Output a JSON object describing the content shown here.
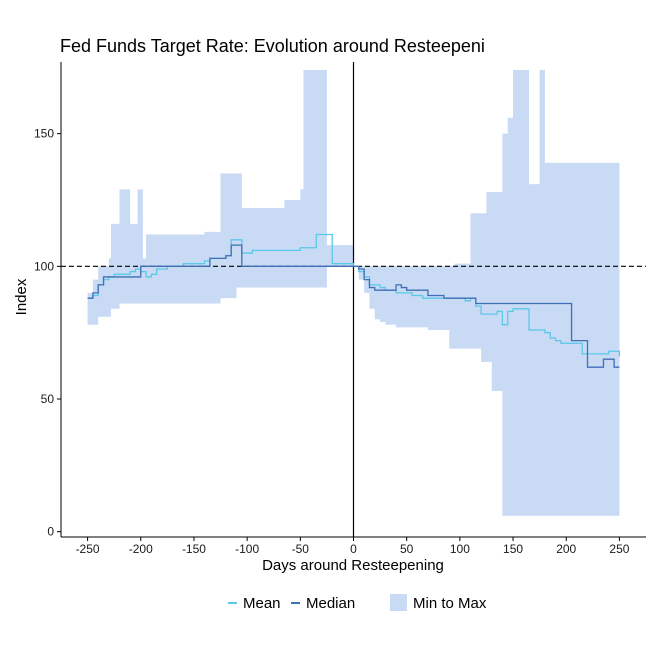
{
  "chart_data": {
    "type": "line",
    "title": "Fed Funds Target Rate: Evolution around Resteepeni",
    "xlabel": "Days around Resteepening",
    "ylabel": "Index",
    "xlim": [
      -275,
      275
    ],
    "ylim": [
      -2,
      177
    ],
    "x_ticks": [
      -250,
      -200,
      -150,
      -100,
      -50,
      0,
      50,
      100,
      150,
      200,
      250
    ],
    "x_tick_labels": [
      "-250",
      "-200",
      "-150",
      "-100",
      "-50",
      "0",
      "50",
      "100",
      "150",
      "200",
      "250"
    ],
    "y_ticks": [
      0,
      50,
      100,
      150
    ],
    "y_tick_labels": [
      "0",
      "50",
      "100",
      "150"
    ],
    "reference_lines": {
      "horizontal_dashed_y": 100,
      "vertical_solid_x": 0
    },
    "grid": false,
    "legend_position": "bottom",
    "colors": {
      "mean": "#5bc8e8",
      "median": "#3f6fb5",
      "band": "#c9daf5"
    },
    "band": {
      "name": "Min to Max",
      "x": [
        -250,
        -245,
        -240,
        -235,
        -230,
        -228,
        -225,
        -220,
        -215,
        -212,
        -210,
        -205,
        -203,
        -200,
        -198,
        -195,
        -190,
        -185,
        -180,
        -175,
        -170,
        -165,
        -160,
        -155,
        -150,
        -145,
        -140,
        -135,
        -130,
        -125,
        -120,
        -115,
        -110,
        -105,
        -100,
        -95,
        -90,
        -85,
        -80,
        -75,
        -70,
        -65,
        -60,
        -55,
        -50,
        -47,
        -45,
        -40,
        -35,
        -30,
        -25,
        -20,
        -15,
        -10,
        -5,
        0,
        5,
        10,
        15,
        20,
        25,
        30,
        35,
        40,
        45,
        50,
        55,
        60,
        65,
        70,
        75,
        80,
        85,
        90,
        95,
        100,
        105,
        110,
        115,
        120,
        125,
        130,
        135,
        140,
        145,
        150,
        155,
        160,
        165,
        170,
        175,
        180,
        185,
        190,
        195,
        200,
        205,
        210,
        215,
        220,
        225,
        230,
        235,
        240,
        245,
        250
      ],
      "min": [
        78,
        78,
        81,
        81,
        81,
        84,
        84,
        86,
        86,
        86,
        86,
        86,
        86,
        86,
        86,
        86,
        86,
        86,
        86,
        86,
        86,
        86,
        86,
        86,
        86,
        86,
        86,
        86,
        86,
        88,
        88,
        88,
        92,
        92,
        92,
        92,
        92,
        92,
        92,
        92,
        92,
        92,
        92,
        92,
        92,
        92,
        92,
        92,
        92,
        92,
        100,
        100,
        100,
        100,
        100,
        100,
        95,
        90,
        84,
        80,
        79,
        78,
        78,
        77,
        77,
        77,
        77,
        77,
        77,
        76,
        76,
        76,
        76,
        69,
        69,
        69,
        69,
        69,
        69,
        64,
        64,
        53,
        53,
        6,
        6,
        6,
        6,
        6,
        6,
        6,
        6,
        6,
        6,
        6,
        6,
        6,
        6,
        6,
        6,
        6,
        6,
        6,
        6,
        6,
        6,
        6
      ],
      "max": [
        90,
        95,
        100,
        100,
        103,
        116,
        116,
        129,
        129,
        129,
        116,
        116,
        129,
        129,
        103,
        112,
        112,
        112,
        112,
        112,
        112,
        112,
        112,
        112,
        112,
        112,
        113,
        113,
        113,
        135,
        135,
        135,
        135,
        122,
        122,
        122,
        122,
        122,
        122,
        122,
        122,
        125,
        125,
        125,
        129,
        174,
        174,
        174,
        174,
        174,
        108,
        108,
        108,
        108,
        108,
        100,
        100,
        100,
        100,
        100,
        100,
        100,
        100,
        100,
        100,
        100,
        100,
        100,
        100,
        100,
        100,
        100,
        100,
        100,
        101,
        101,
        101,
        120,
        120,
        120,
        128,
        128,
        128,
        150,
        156,
        174,
        174,
        174,
        131,
        131,
        174,
        139,
        139,
        139,
        139,
        139,
        139,
        139,
        139,
        139,
        139,
        139,
        139,
        139,
        139,
        139
      ]
    },
    "series": [
      {
        "name": "Mean",
        "x": [
          -250,
          -245,
          -240,
          -235,
          -230,
          -225,
          -220,
          -215,
          -210,
          -205,
          -200,
          -195,
          -190,
          -185,
          -180,
          -175,
          -170,
          -165,
          -160,
          -155,
          -150,
          -145,
          -140,
          -135,
          -130,
          -125,
          -120,
          -115,
          -110,
          -105,
          -100,
          -95,
          -90,
          -85,
          -80,
          -75,
          -70,
          -65,
          -60,
          -55,
          -50,
          -45,
          -40,
          -35,
          -30,
          -25,
          -20,
          -15,
          -10,
          -5,
          0,
          5,
          10,
          15,
          20,
          25,
          30,
          35,
          40,
          45,
          50,
          55,
          60,
          65,
          70,
          75,
          80,
          85,
          90,
          95,
          100,
          105,
          110,
          115,
          120,
          125,
          130,
          135,
          140,
          145,
          150,
          155,
          160,
          165,
          170,
          175,
          180,
          185,
          190,
          195,
          200,
          205,
          210,
          215,
          220,
          225,
          230,
          235,
          240,
          245,
          250
        ],
        "values": [
          88,
          89,
          93,
          95,
          96,
          97,
          97,
          97,
          98,
          99,
          98,
          96,
          97,
          99,
          99,
          100,
          100,
          100,
          101,
          101,
          101,
          101,
          102,
          103,
          103,
          103,
          104,
          110,
          110,
          105,
          105,
          106,
          106,
          106,
          106,
          106,
          106,
          106,
          106,
          106,
          107,
          107,
          107,
          112,
          112,
          112,
          101,
          101,
          101,
          101,
          100,
          98,
          96,
          93,
          93,
          92,
          91,
          91,
          90,
          90,
          90,
          89,
          89,
          88,
          88,
          88,
          88,
          88,
          88,
          88,
          88,
          87,
          88,
          85,
          82,
          82,
          82,
          83,
          78,
          83,
          84,
          84,
          84,
          76,
          76,
          76,
          75,
          73,
          72,
          71,
          71,
          71,
          71,
          67,
          67,
          67,
          67,
          67,
          68,
          68,
          66
        ]
      },
      {
        "name": "Median",
        "x": [
          -250,
          -245,
          -240,
          -235,
          -230,
          -225,
          -220,
          -215,
          -210,
          -205,
          -200,
          -195,
          -190,
          -185,
          -180,
          -175,
          -170,
          -165,
          -160,
          -155,
          -150,
          -145,
          -140,
          -135,
          -130,
          -125,
          -120,
          -115,
          -110,
          -105,
          -100,
          -95,
          -90,
          -85,
          -80,
          -75,
          -70,
          -65,
          -60,
          -55,
          -50,
          -45,
          -40,
          -35,
          -30,
          -25,
          -20,
          -15,
          -10,
          -5,
          0,
          5,
          10,
          15,
          20,
          25,
          30,
          35,
          40,
          45,
          50,
          55,
          60,
          65,
          70,
          75,
          80,
          85,
          90,
          95,
          100,
          105,
          110,
          115,
          120,
          125,
          130,
          135,
          140,
          145,
          150,
          155,
          160,
          165,
          170,
          175,
          180,
          185,
          190,
          195,
          200,
          205,
          210,
          215,
          220,
          225,
          230,
          235,
          240,
          245,
          250
        ],
        "values": [
          88,
          90,
          93,
          96,
          96,
          96,
          96,
          96,
          96,
          96,
          100,
          100,
          100,
          100,
          100,
          100,
          100,
          100,
          100,
          100,
          100,
          100,
          100,
          103,
          103,
          103,
          104,
          108,
          108,
          100,
          100,
          100,
          100,
          100,
          100,
          100,
          100,
          100,
          100,
          100,
          100,
          100,
          100,
          100,
          100,
          100,
          100,
          100,
          100,
          100,
          100,
          99,
          95,
          92,
          91,
          91,
          91,
          91,
          93,
          92,
          91,
          91,
          91,
          91,
          89,
          89,
          89,
          88,
          88,
          88,
          88,
          88,
          88,
          86,
          86,
          86,
          86,
          86,
          86,
          86,
          86,
          86,
          86,
          86,
          86,
          86,
          86,
          86,
          86,
          86,
          86,
          72,
          72,
          72,
          62,
          62,
          62,
          65,
          65,
          62,
          62
        ]
      }
    ]
  }
}
